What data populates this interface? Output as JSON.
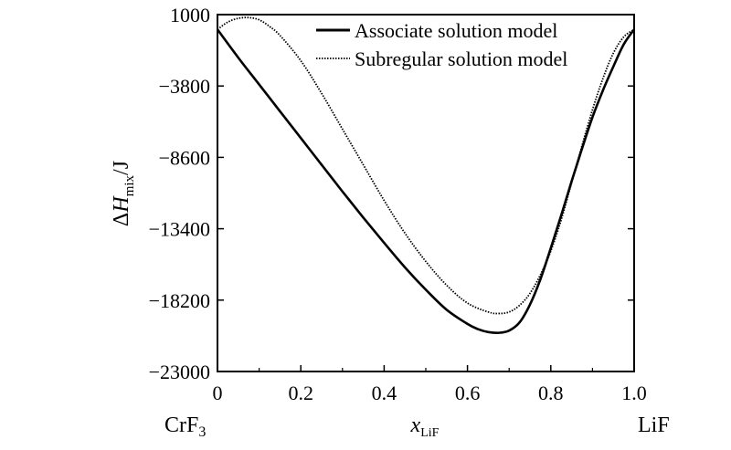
{
  "chart_data": {
    "type": "line",
    "title": "",
    "xlabel": {
      "main": "x",
      "sub": "LiF"
    },
    "ylabel": {
      "prefix": "Δ",
      "main": "H",
      "sub": "mix",
      "suffix": "/J"
    },
    "xlim": [
      0,
      1.0
    ],
    "ylim": [
      -23000,
      1000
    ],
    "xticks": [
      0,
      0.2,
      0.4,
      0.6,
      0.8,
      1.0
    ],
    "xtick_labels": [
      "0",
      "0.2",
      "0.4",
      "0.6",
      "0.8",
      "1.0"
    ],
    "yticks": [
      1000,
      -3800,
      -8600,
      -13400,
      -18200,
      -23000
    ],
    "ytick_labels": [
      "1000",
      "−3800",
      "−8600",
      "−13400",
      "−18200",
      "−23000"
    ],
    "end_labels": {
      "left": {
        "main": "CrF",
        "sub": "3"
      },
      "right": "LiF"
    },
    "grid": false,
    "legend_position": "top-right",
    "series": [
      {
        "name": "Associate solution model",
        "style": "solid",
        "color": "#000000",
        "x": [
          0,
          0.05,
          0.1,
          0.15,
          0.2,
          0.25,
          0.3,
          0.35,
          0.4,
          0.45,
          0.5,
          0.55,
          0.6,
          0.625,
          0.65,
          0.675,
          0.7,
          0.725,
          0.75,
          0.775,
          0.8,
          0.825,
          0.85,
          0.875,
          0.9,
          0.925,
          0.95,
          0.975,
          1.0
        ],
        "y": [
          0,
          -1900,
          -3700,
          -5500,
          -7300,
          -9100,
          -10900,
          -12650,
          -14350,
          -16000,
          -17500,
          -18850,
          -19800,
          -20150,
          -20350,
          -20400,
          -20250,
          -19700,
          -18500,
          -16800,
          -14700,
          -12500,
          -10200,
          -8000,
          -5900,
          -4100,
          -2500,
          -1000,
          0
        ]
      },
      {
        "name": "Subregular solution model",
        "style": "dotted",
        "color": "#000000",
        "x": [
          0,
          0.025,
          0.05,
          0.075,
          0.1,
          0.125,
          0.15,
          0.2,
          0.25,
          0.3,
          0.35,
          0.4,
          0.45,
          0.5,
          0.55,
          0.6,
          0.65,
          0.675,
          0.7,
          0.725,
          0.75,
          0.775,
          0.8,
          0.825,
          0.85,
          0.875,
          0.9,
          0.925,
          0.95,
          0.975,
          1.0
        ],
        "y": [
          0,
          500,
          750,
          800,
          650,
          200,
          -400,
          -2100,
          -4300,
          -6700,
          -9100,
          -11500,
          -13700,
          -15600,
          -17200,
          -18400,
          -19000,
          -19100,
          -19000,
          -18550,
          -17750,
          -16500,
          -14900,
          -12800,
          -10300,
          -7800,
          -5400,
          -3300,
          -1600,
          -500,
          0
        ]
      }
    ]
  }
}
